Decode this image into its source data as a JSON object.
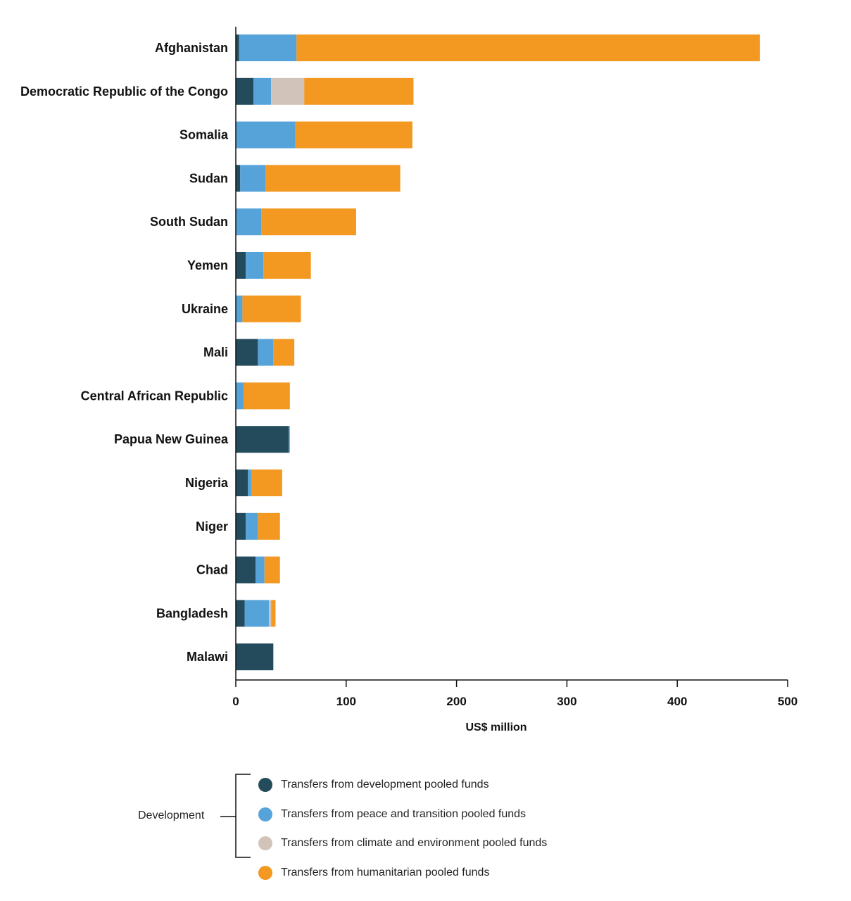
{
  "chart_data": {
    "type": "bar",
    "orientation": "horizontal",
    "stacked": true,
    "categories": [
      "Afghanistan",
      "Democratic Republic of the Congo",
      "Somalia",
      "Sudan",
      "South Sudan",
      "Yemen",
      "Ukraine",
      "Mali",
      "Central African Republic",
      "Papua New Guinea",
      "Nigeria",
      "Niger",
      "Chad",
      "Bangladesh",
      "Malawi"
    ],
    "series": [
      {
        "name": "Transfers from development pooled funds",
        "color": "#234b5c",
        "values": [
          3,
          16,
          0,
          4,
          0,
          9,
          0,
          20,
          0,
          48,
          11,
          9,
          18,
          8,
          34
        ]
      },
      {
        "name": "Transfers from peace and transition pooled funds",
        "color": "#56a3da",
        "values": [
          52,
          16,
          54,
          23,
          23,
          16,
          6,
          14,
          7,
          1,
          3,
          11,
          8,
          22,
          0
        ]
      },
      {
        "name": "Transfers from climate and environment pooled funds",
        "color": "#d2c3ba",
        "values": [
          0,
          30,
          0,
          0,
          0,
          0,
          0,
          0,
          0,
          0,
          0,
          0,
          0,
          2,
          0
        ]
      },
      {
        "name": "Transfers from humanitarian pooled funds",
        "color": "#f39820",
        "values": [
          420,
          99,
          106,
          122,
          86,
          43,
          53,
          19,
          42,
          0,
          28,
          20,
          14,
          4,
          0
        ]
      }
    ],
    "xlabel": "US$ million",
    "ylabel": "",
    "xlim": [
      0,
      500
    ],
    "xticks": [
      "0",
      "100",
      "200",
      "300",
      "400",
      "500"
    ],
    "grid": false,
    "legend_placement": "bottom",
    "legend_group_label": "Development"
  }
}
